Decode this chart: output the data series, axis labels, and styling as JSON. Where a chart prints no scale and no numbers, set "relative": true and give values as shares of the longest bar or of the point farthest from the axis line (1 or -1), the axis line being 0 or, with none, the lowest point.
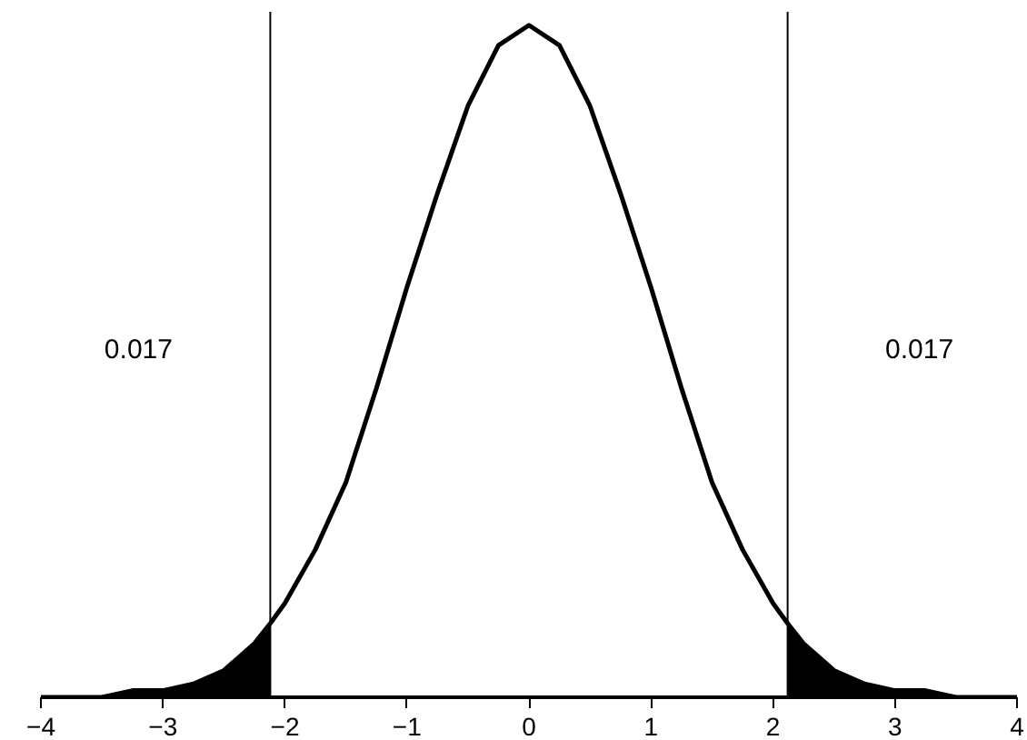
{
  "chart_data": {
    "type": "line",
    "relative": true,
    "xlim": [
      -4,
      4
    ],
    "xticks": [
      -4,
      -3,
      -2,
      -1,
      0,
      1,
      2,
      3,
      4
    ],
    "grid": false,
    "series": [
      {
        "color": "#000000",
        "x": [
          -4,
          -3.75,
          -3.5,
          -3.25,
          -3,
          -2.75,
          -2.5,
          -2.25,
          -2.12,
          -2,
          -1.75,
          -1.5,
          -1.25,
          -1,
          -0.75,
          -0.5,
          -0.25,
          0,
          0.25,
          0.5,
          0.75,
          1,
          1.25,
          1.5,
          1.75,
          2,
          2.12,
          2.25,
          2.5,
          2.75,
          3,
          3.25,
          3.5,
          3.75,
          4
        ],
        "values": [
          0.0,
          0.0,
          0.0,
          0.01,
          0.01,
          0.02,
          0.04,
          0.08,
          0.11,
          0.14,
          0.22,
          0.32,
          0.46,
          0.61,
          0.75,
          0.88,
          0.97,
          1,
          0.97,
          0.88,
          0.75,
          0.61,
          0.46,
          0.32,
          0.22,
          0.14,
          0.11,
          0.08,
          0.04,
          0.02,
          0.01,
          0.01,
          0.0,
          0.0,
          0.0
        ]
      },
      {
        "type": "area",
        "color": "#000000",
        "x": [
          -4,
          -3.75,
          -3.5,
          -3.25,
          -3,
          -2.75,
          -2.5,
          -2.25,
          -2.12
        ],
        "values": [
          0.0,
          0.0,
          0.0,
          0.01,
          0.01,
          0.02,
          0.04,
          0.08,
          0.11
        ]
      },
      {
        "type": "area",
        "color": "#000000",
        "x": [
          2.12,
          2.25,
          2.5,
          2.75,
          3,
          3.25,
          3.5,
          3.75,
          4
        ],
        "values": [
          0.11,
          0.08,
          0.04,
          0.02,
          0.01,
          0.01,
          0.0,
          0.0,
          0.0
        ]
      }
    ],
    "ref_lines": [
      {
        "axis": "x",
        "value": -2.12,
        "color": "#000000"
      },
      {
        "axis": "x",
        "value": 2.12,
        "color": "#000000"
      }
    ],
    "annotations": [
      "0.017",
      "0.017"
    ]
  }
}
